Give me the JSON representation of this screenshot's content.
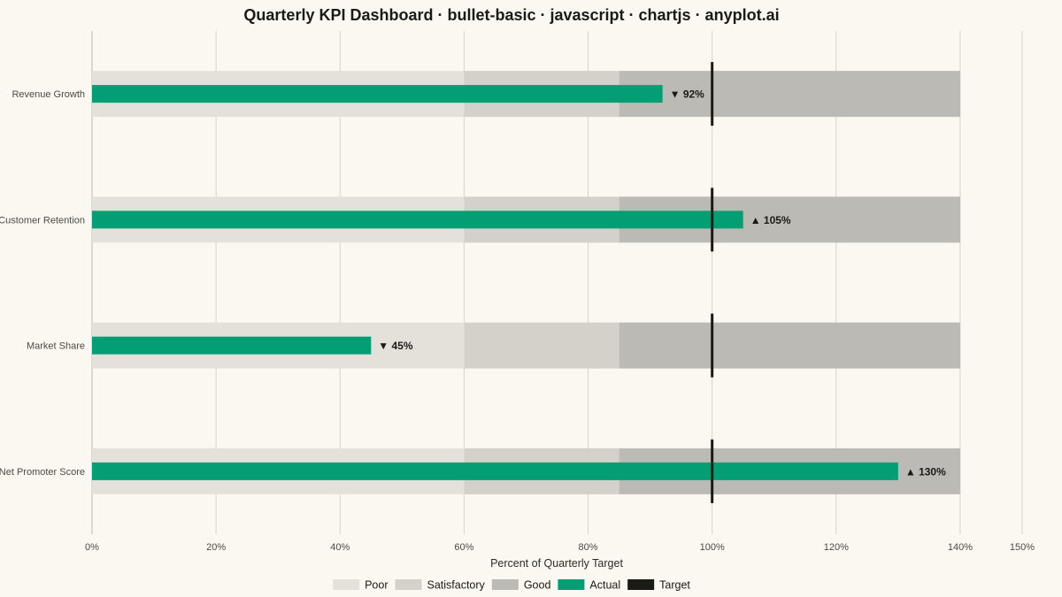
{
  "chart_data": {
    "type": "bar",
    "title": "Quarterly KPI Dashboard · bullet-basic · javascript · chartjs · anyplot.ai",
    "xlabel": "Percent of Quarterly Target",
    "ylabel": "",
    "xlim": [
      0,
      150
    ],
    "x_ticks": [
      0,
      20,
      40,
      60,
      80,
      100,
      120,
      140,
      150
    ],
    "x_tick_labels": [
      "0%",
      "20%",
      "40%",
      "60%",
      "80%",
      "100%",
      "120%",
      "140%",
      "150%"
    ],
    "grid": "vertical",
    "legend_position": "bottom",
    "categories": [
      "Revenue Growth",
      "Customer Retention",
      "Market Share",
      "Net Promoter Score"
    ],
    "bands": [
      {
        "name": "Poor",
        "from": 0,
        "to": 60,
        "color": "#E4E1DA"
      },
      {
        "name": "Satisfactory",
        "from": 60,
        "to": 85,
        "color": "#D4D1CA"
      },
      {
        "name": "Good",
        "from": 85,
        "to": 140,
        "color": "#BCBAB4"
      }
    ],
    "series": [
      {
        "name": "Actual",
        "color": "#039E73",
        "values": [
          92,
          105,
          45,
          130
        ]
      },
      {
        "name": "Target",
        "color": "#1A1A17",
        "values": [
          100,
          100,
          100,
          100
        ]
      }
    ],
    "value_labels": [
      "▼ 92%",
      "▲ 105%",
      "▼ 45%",
      "▲ 130%"
    ]
  }
}
